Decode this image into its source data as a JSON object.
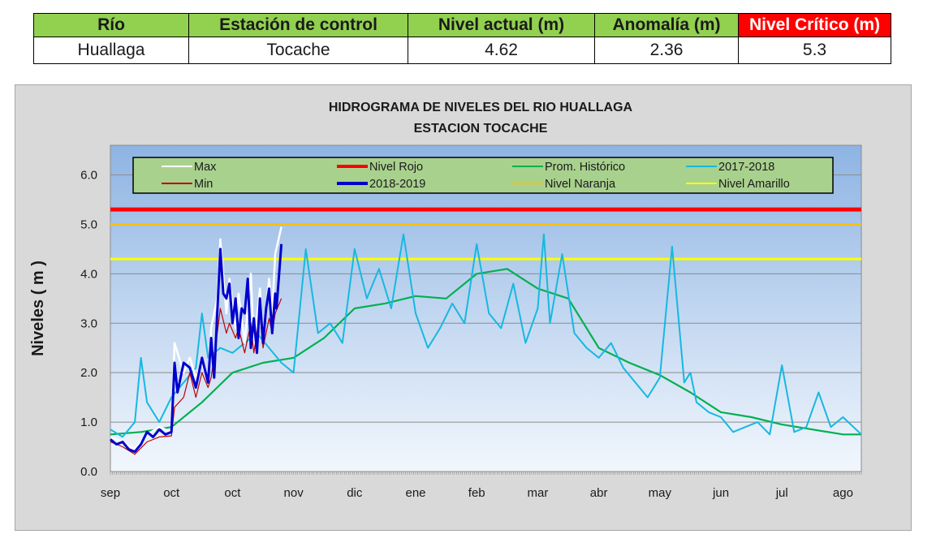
{
  "summary": {
    "headers": [
      "Río",
      "Estación de control",
      "Nivel actual (m)",
      "Anomalía (m)",
      "Nivel Crítico (m)"
    ],
    "values": [
      "Huallaga",
      "Tocache",
      "4.62",
      "2.36",
      "5.3"
    ],
    "colors": {
      "header_bg": "#92d050",
      "critical_bg": "#ff0000"
    }
  },
  "chart_data": {
    "type": "line",
    "title": [
      "HIDROGRAMA DE NIVELES DEL RIO HUALLAGA",
      "ESTACION TOCACHE"
    ],
    "ylabel": "Niveles ( m )",
    "xlabel": "",
    "ylim": [
      0,
      6.6
    ],
    "ytick_labels": [
      "0.0",
      "1.0",
      "2.0",
      "3.0",
      "4.0",
      "5.0",
      "6.0"
    ],
    "categories": [
      "sep",
      "oct",
      "oct",
      "nov",
      "dic",
      "ene",
      "feb",
      "mar",
      "abr",
      "may",
      "jun",
      "jul",
      "ago"
    ],
    "x_note": "x values are month positions: 0 = sep ... 12 = ago",
    "grid": true,
    "legend_position": "top",
    "thresholds": [
      {
        "name": "Nivel Rojo",
        "value": 5.3,
        "color": "#ff0000"
      },
      {
        "name": "Nivel Naranja",
        "value": 5.0,
        "color": "#ffc000"
      },
      {
        "name": "Nivel Amarillo",
        "value": 4.3,
        "color": "#ffff00"
      }
    ],
    "series": [
      {
        "name": "Max",
        "color": "#ffffff",
        "x": [
          0,
          0.2,
          0.4,
          0.6,
          0.8,
          1.0,
          1.05,
          1.2,
          1.3,
          1.4,
          1.5,
          1.6,
          1.65,
          1.75,
          1.8,
          1.9,
          1.95,
          2.05,
          2.1,
          2.2,
          2.3,
          2.35,
          2.45,
          2.5,
          2.6,
          2.65,
          2.7,
          2.8
        ],
        "values": [
          0.7,
          0.6,
          0.45,
          0.75,
          0.9,
          0.8,
          2.6,
          2.0,
          2.3,
          1.9,
          2.2,
          1.8,
          2.9,
          3.5,
          4.7,
          3.2,
          3.9,
          2.9,
          3.6,
          2.6,
          4.0,
          2.5,
          3.7,
          2.7,
          3.9,
          3.2,
          4.4,
          4.95
        ]
      },
      {
        "name": "Min",
        "color": "#c00000",
        "x": [
          0,
          0.2,
          0.4,
          0.6,
          0.8,
          1.0,
          1.05,
          1.2,
          1.3,
          1.4,
          1.5,
          1.6,
          1.65,
          1.75,
          1.8,
          1.9,
          1.95,
          2.05,
          2.1,
          2.2,
          2.3,
          2.35,
          2.45,
          2.5,
          2.6,
          2.65,
          2.7,
          2.8
        ],
        "values": [
          0.6,
          0.5,
          0.35,
          0.6,
          0.7,
          0.72,
          1.3,
          1.5,
          2.0,
          1.5,
          2.0,
          1.7,
          1.9,
          2.8,
          3.3,
          2.8,
          3.0,
          2.7,
          2.9,
          2.4,
          3.0,
          2.4,
          3.2,
          2.5,
          3.1,
          2.8,
          3.2,
          3.5
        ]
      },
      {
        "name": "Nivel Rojo",
        "color": "#ff0000",
        "x": [
          0,
          12.3
        ],
        "values": [
          5.3,
          5.3
        ]
      },
      {
        "name": "2018-2019",
        "color": "#0000cc",
        "x": [
          0,
          0.1,
          0.2,
          0.3,
          0.4,
          0.5,
          0.6,
          0.7,
          0.8,
          0.9,
          1.0,
          1.05,
          1.1,
          1.2,
          1.3,
          1.4,
          1.5,
          1.6,
          1.65,
          1.7,
          1.75,
          1.8,
          1.85,
          1.9,
          1.95,
          2.0,
          2.05,
          2.1,
          2.15,
          2.2,
          2.25,
          2.3,
          2.35,
          2.4,
          2.45,
          2.5,
          2.55,
          2.6,
          2.65,
          2.7,
          2.72,
          2.8
        ],
        "values": [
          0.65,
          0.55,
          0.6,
          0.45,
          0.4,
          0.55,
          0.8,
          0.7,
          0.85,
          0.75,
          0.8,
          2.2,
          1.6,
          2.2,
          2.1,
          1.7,
          2.3,
          1.8,
          2.7,
          1.9,
          3.2,
          4.5,
          3.6,
          3.5,
          3.8,
          3.0,
          3.5,
          2.7,
          3.3,
          3.2,
          3.9,
          2.5,
          3.1,
          2.4,
          3.5,
          2.6,
          3.3,
          3.7,
          2.8,
          3.6,
          3.3,
          4.6
        ]
      },
      {
        "name": "Prom. Histórico",
        "color": "#00b050",
        "x": [
          0,
          0.5,
          1.0,
          1.5,
          2.0,
          2.5,
          3.0,
          3.5,
          4.0,
          4.5,
          5.0,
          5.5,
          6.0,
          6.5,
          7.0,
          7.5,
          8.0,
          8.5,
          9.0,
          9.5,
          10.0,
          10.5,
          11.0,
          11.5,
          12.0,
          12.3
        ],
        "values": [
          0.75,
          0.8,
          0.9,
          1.4,
          2.0,
          2.2,
          2.3,
          2.7,
          3.3,
          3.4,
          3.55,
          3.5,
          4.0,
          4.1,
          3.7,
          3.5,
          2.5,
          2.2,
          1.95,
          1.6,
          1.2,
          1.1,
          0.95,
          0.85,
          0.75,
          0.75
        ]
      },
      {
        "name": "Nivel Naranja",
        "color": "#ffc000",
        "x": [
          0,
          12.3
        ],
        "values": [
          5.0,
          5.0
        ]
      },
      {
        "name": "2017-2018",
        "color": "#17b8e0",
        "x": [
          0,
          0.2,
          0.4,
          0.5,
          0.6,
          0.8,
          1.0,
          1.2,
          1.4,
          1.5,
          1.6,
          1.8,
          2.0,
          2.2,
          2.4,
          2.6,
          2.8,
          3.0,
          3.2,
          3.4,
          3.6,
          3.8,
          4.0,
          4.2,
          4.4,
          4.6,
          4.8,
          5.0,
          5.2,
          5.4,
          5.6,
          5.8,
          6.0,
          6.2,
          6.4,
          6.6,
          6.8,
          7.0,
          7.1,
          7.2,
          7.4,
          7.6,
          7.8,
          8.0,
          8.2,
          8.4,
          8.6,
          8.8,
          9.0,
          9.2,
          9.4,
          9.5,
          9.6,
          9.8,
          10.0,
          10.2,
          10.4,
          10.6,
          10.8,
          11.0,
          11.2,
          11.4,
          11.6,
          11.8,
          12.0,
          12.3
        ],
        "values": [
          0.85,
          0.7,
          1.0,
          2.3,
          1.4,
          1.0,
          1.5,
          1.8,
          2.1,
          3.2,
          2.3,
          2.5,
          2.4,
          2.6,
          2.8,
          2.5,
          2.2,
          2.0,
          4.5,
          2.8,
          3.0,
          2.6,
          4.5,
          3.5,
          4.1,
          3.3,
          4.8,
          3.2,
          2.5,
          2.9,
          3.4,
          3.0,
          4.6,
          3.2,
          2.9,
          3.8,
          2.6,
          3.3,
          4.8,
          3.0,
          4.4,
          2.8,
          2.5,
          2.3,
          2.6,
          2.1,
          1.8,
          1.5,
          1.9,
          4.55,
          1.8,
          2.0,
          1.4,
          1.2,
          1.1,
          0.8,
          0.9,
          1.0,
          0.75,
          2.15,
          0.8,
          0.9,
          1.6,
          0.9,
          1.1,
          0.75
        ]
      },
      {
        "name": "Nivel Amarillo",
        "color": "#ffff00",
        "x": [
          0,
          12.3
        ],
        "values": [
          4.3,
          4.3
        ]
      }
    ]
  }
}
